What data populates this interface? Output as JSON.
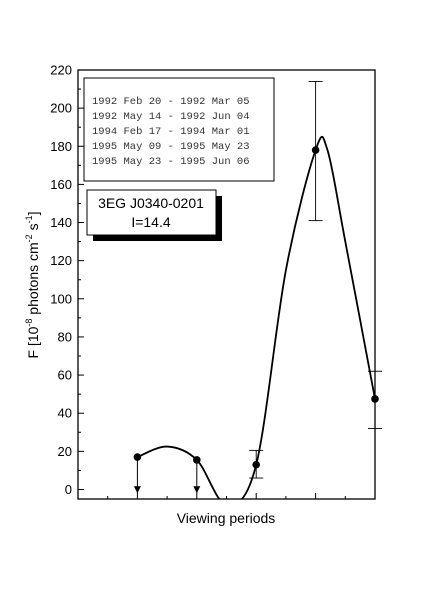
{
  "chart_data": {
    "type": "scatter",
    "title": "",
    "xlabel": "Viewing periods",
    "ylabel": {
      "base": "F [10",
      "exp1": "-8",
      "mid1": " photons cm",
      "exp2": "-2",
      "mid2": " s",
      "exp3": "-1",
      "end": "]"
    },
    "xlim": [
      0,
      5
    ],
    "ylim": [
      -5,
      220
    ],
    "yticks": [
      0,
      20,
      40,
      60,
      80,
      100,
      120,
      140,
      160,
      180,
      200,
      220
    ],
    "ytick_labels": [
      "0",
      "20",
      "40",
      "60",
      "80",
      "100",
      "120",
      "140",
      "160",
      "180",
      "200",
      "220"
    ],
    "grid": false,
    "points": [
      {
        "x": 1,
        "y": 17,
        "upper_limit": true
      },
      {
        "x": 2,
        "y": 15.5,
        "upper_limit": true
      },
      {
        "x": 3,
        "y": 13,
        "err_low": 6,
        "err_high": 20.5
      },
      {
        "x": 4,
        "y": 178,
        "err_low": 141,
        "err_high": 214
      },
      {
        "x": 5,
        "y": 47.5,
        "err_low": 32,
        "err_high": 62
      }
    ],
    "curve": {
      "x": [
        1,
        1.5,
        2,
        2.5,
        3,
        3.5,
        4,
        4.2,
        4.5,
        5
      ],
      "y": [
        17,
        22.5,
        15.5,
        -8,
        13,
        115,
        178,
        178,
        130,
        47.5
      ]
    },
    "legend": {
      "lines": [
        "1992 Feb 20 - 1992 Mar 05",
        "1992 May 14 - 1992 Jun 04",
        "1994 Feb 17 - 1994 Mar 01",
        "1995 May 09 - 1995 May 23",
        "1995 May 23 - 1995 Jun 06"
      ],
      "placement": "top-left"
    },
    "source": {
      "name": "3EG J0340-0201",
      "index": "I=14.4"
    }
  }
}
